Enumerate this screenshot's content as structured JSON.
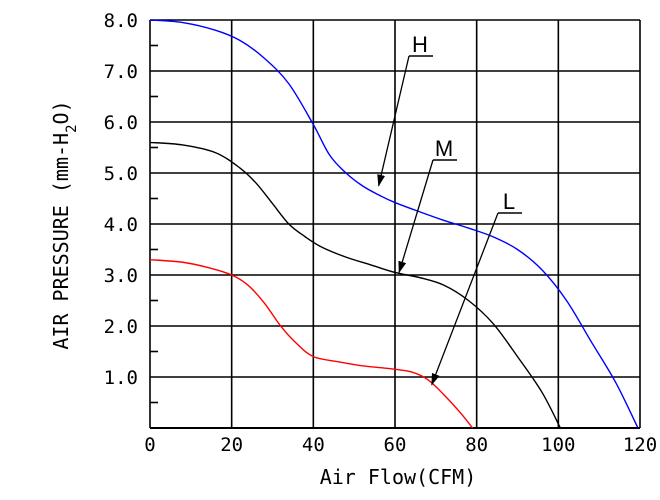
{
  "chart_data": {
    "type": "line",
    "title": "",
    "xlabel": "Air Flow(CFM)",
    "ylabel_prefix": "AIR PRESSURE (mm-H",
    "ylabel_sub": "2",
    "ylabel_suffix": "O)",
    "xlim": [
      0,
      120
    ],
    "ylim": [
      0,
      8
    ],
    "x_ticks": [
      "0",
      "20",
      "40",
      "60",
      "80",
      "100",
      "120"
    ],
    "y_ticks": [
      "1.0",
      "2.0",
      "3.0",
      "4.0",
      "5.0",
      "6.0",
      "7.0",
      "8.0"
    ],
    "grid": true,
    "series": [
      {
        "name": "H",
        "color": "#0000ff",
        "x": [
          0,
          8,
          16,
          22,
          28,
          34,
          40,
          44,
          48,
          52,
          56,
          60,
          66,
          72,
          78,
          84,
          90,
          96,
          102,
          108,
          114,
          119.5
        ],
        "y": [
          8.0,
          7.95,
          7.8,
          7.6,
          7.25,
          6.75,
          5.95,
          5.35,
          5.0,
          4.75,
          4.57,
          4.42,
          4.24,
          4.07,
          3.92,
          3.75,
          3.5,
          3.1,
          2.5,
          1.7,
          0.9,
          0.0
        ]
      },
      {
        "name": "M",
        "color": "#000000",
        "x": [
          0,
          8,
          16,
          22,
          26,
          30,
          34,
          38,
          42,
          48,
          54,
          60,
          66,
          72,
          78,
          84,
          90,
          96,
          100.5
        ],
        "y": [
          5.6,
          5.55,
          5.4,
          5.1,
          4.8,
          4.4,
          4.0,
          3.75,
          3.55,
          3.35,
          3.2,
          3.05,
          2.95,
          2.8,
          2.5,
          2.05,
          1.4,
          0.7,
          0.0
        ]
      },
      {
        "name": "L",
        "color": "#ff0000",
        "x": [
          0,
          8,
          14,
          20,
          24,
          28,
          32,
          36,
          40,
          46,
          52,
          58,
          64,
          68,
          72,
          76,
          79
        ],
        "y": [
          3.3,
          3.25,
          3.15,
          3.0,
          2.8,
          2.45,
          2.0,
          1.65,
          1.4,
          1.3,
          1.22,
          1.17,
          1.1,
          0.95,
          0.65,
          0.3,
          0.0
        ]
      }
    ],
    "annotations": [
      {
        "text": "H",
        "target_x": 56,
        "target_y": 4.75
      },
      {
        "text": "M",
        "target_x": 61,
        "target_y": 3.05
      },
      {
        "text": "L",
        "target_x": 69,
        "target_y": 0.85
      }
    ]
  }
}
